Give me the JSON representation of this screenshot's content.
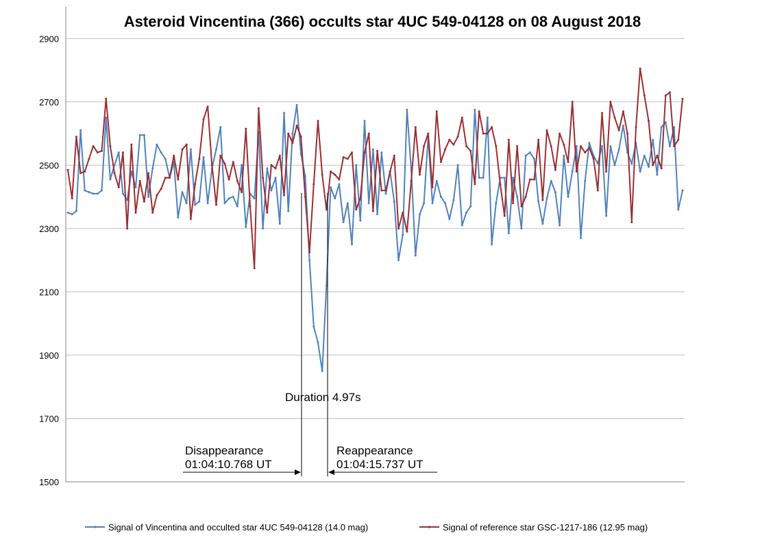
{
  "chart_data": {
    "type": "line",
    "title": "Asteroid Vincentina (366) occults star 4UC 549-04128 on 08 August 2018",
    "xlabel": "",
    "ylabel": "",
    "ylim": [
      1500,
      3000
    ],
    "yticks": [
      1500,
      1700,
      1900,
      2100,
      2300,
      2500,
      2700,
      2900
    ],
    "grid": true,
    "legend_position": "bottom",
    "series": [
      {
        "name": "Signal of Vincentina and occulted star 4UC 549-04128 (14.0 mag)",
        "color": "#4F81BD",
        "values": [
          2350,
          2345,
          2355,
          2610,
          2420,
          2415,
          2410,
          2410,
          2420,
          2650,
          2455,
          2500,
          2540,
          2410,
          2390,
          2480,
          2430,
          2595,
          2595,
          2400,
          2490,
          2565,
          2540,
          2520,
          2460,
          2510,
          2335,
          2415,
          2380,
          2550,
          2375,
          2385,
          2525,
          2380,
          2490,
          2550,
          2620,
          2380,
          2395,
          2400,
          2370,
          2500,
          2305,
          2410,
          2395,
          2605,
          2300,
          2490,
          2420,
          2460,
          2315,
          2665,
          2355,
          2600,
          2690,
          2535,
          2465,
          2200,
          1990,
          1940,
          1850,
          2120,
          2430,
          2395,
          2440,
          2320,
          2380,
          2250,
          2500,
          2325,
          2640,
          2380,
          2550,
          2345,
          2540,
          2410,
          2480,
          2385,
          2200,
          2280,
          2675,
          2485,
          2215,
          2345,
          2380,
          2590,
          2380,
          2450,
          2400,
          2380,
          2330,
          2390,
          2500,
          2310,
          2350,
          2370,
          2675,
          2460,
          2460,
          2650,
          2250,
          2380,
          2460,
          2460,
          2285,
          2460,
          2400,
          2300,
          2530,
          2540,
          2520,
          2385,
          2315,
          2395,
          2450,
          2415,
          2310,
          2530,
          2400,
          2480,
          2560,
          2270,
          2450,
          2570,
          2530,
          2505,
          2560,
          2340,
          2560,
          2500,
          2550,
          2625,
          2540,
          2505,
          2570,
          2480,
          2530,
          2495,
          2580,
          2470,
          2620,
          2635,
          2560,
          2620,
          2360,
          2420
        ]
      },
      {
        "name": "Signal of reference star GSC-1217-186 (12.95 mag)",
        "color": "#9B2D30",
        "values": [
          2485,
          2395,
          2590,
          2475,
          2480,
          2520,
          2560,
          2540,
          2545,
          2710,
          2560,
          2475,
          2430,
          2540,
          2300,
          2565,
          2350,
          2450,
          2385,
          2475,
          2350,
          2405,
          2425,
          2460,
          2460,
          2530,
          2455,
          2550,
          2565,
          2330,
          2440,
          2520,
          2645,
          2685,
          2500,
          2375,
          2530,
          2505,
          2455,
          2510,
          2450,
          2415,
          2615,
          2370,
          2175,
          2680,
          2460,
          2350,
          2500,
          2490,
          2530,
          2405,
          2600,
          2570,
          2625,
          2590,
          2400,
          2225,
          2440,
          2640,
          2470,
          2360,
          2480,
          2470,
          2455,
          2525,
          2520,
          2540,
          2360,
          2395,
          2540,
          2600,
          2355,
          2545,
          2420,
          2420,
          2480,
          2530,
          2300,
          2350,
          2290,
          2450,
          2620,
          2470,
          2560,
          2600,
          2430,
          2670,
          2510,
          2550,
          2580,
          2565,
          2590,
          2650,
          2560,
          2545,
          2440,
          2670,
          2600,
          2600,
          2620,
          2560,
          2440,
          2340,
          2580,
          2380,
          2560,
          2370,
          2400,
          2455,
          2455,
          2580,
          2390,
          2610,
          2560,
          2485,
          2600,
          2565,
          2510,
          2700,
          2480,
          2560,
          2540,
          2555,
          2520,
          2420,
          2665,
          2480,
          2700,
          2650,
          2610,
          2670,
          2600,
          2320,
          2620,
          2805,
          2720,
          2640,
          2500,
          2530,
          2490,
          2720,
          2730,
          2560,
          2580,
          2710
        ]
      }
    ],
    "annotations": {
      "duration": "Duration 4.97s",
      "disappearance_label": "Disappearance",
      "disappearance_time": "01:04:10.768 UT",
      "reappearance_label": "Reappearance",
      "reappearance_time": "01:04:15.737 UT"
    }
  }
}
